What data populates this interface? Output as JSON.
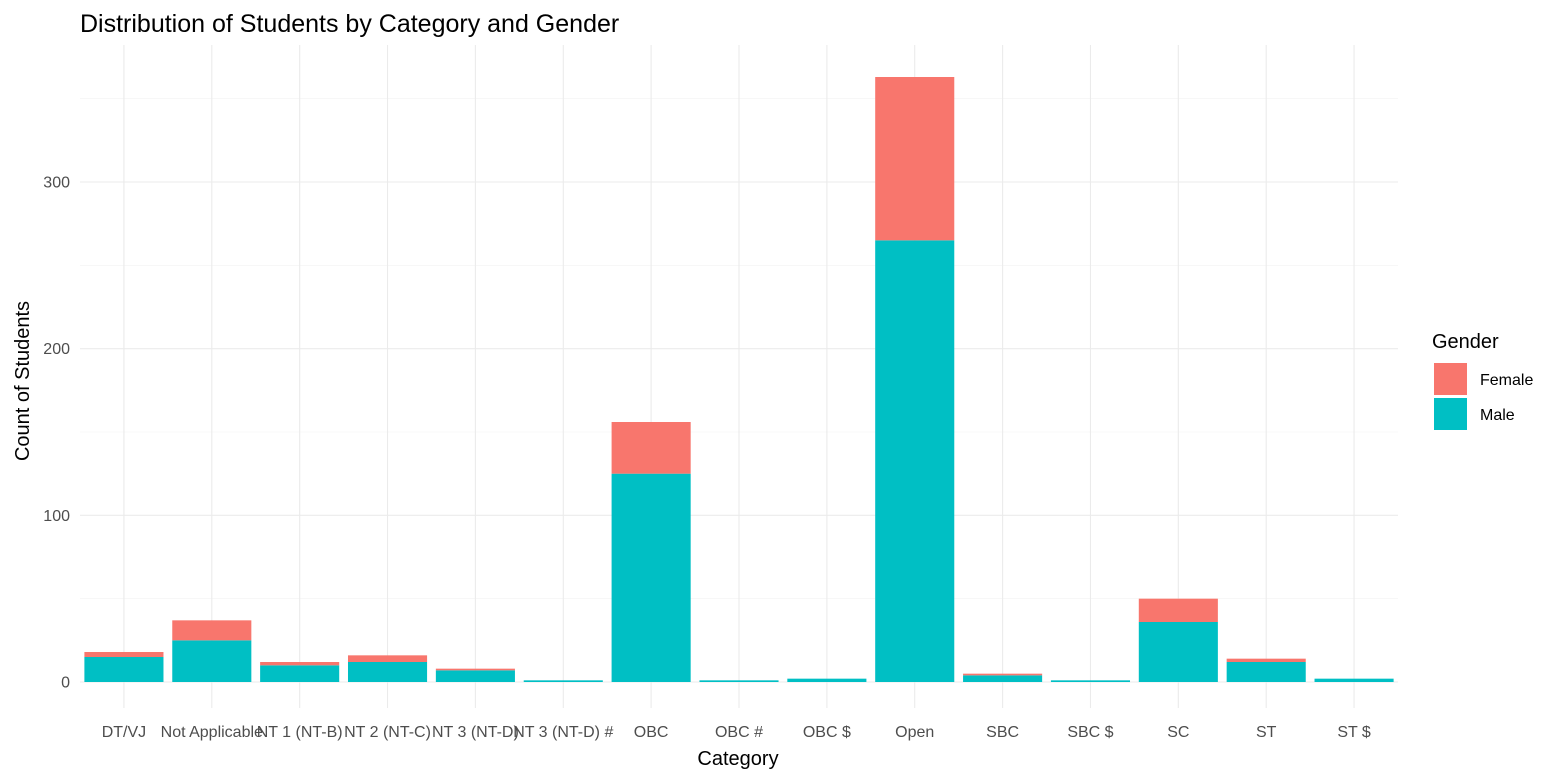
{
  "chart_data": {
    "type": "bar",
    "stacked": true,
    "title": "Distribution of Students by Category and Gender",
    "xlabel": "Category",
    "ylabel": "Count of Students",
    "categories": [
      "DT/VJ",
      "Not Applicable",
      "NT 1 (NT-B)",
      "NT 2 (NT-C)",
      "NT 3 (NT-D)",
      "NT 3 (NT-D) #",
      "OBC",
      "OBC #",
      "OBC $",
      "Open",
      "SBC",
      "SBC $",
      "SC",
      "ST",
      "ST $"
    ],
    "series": [
      {
        "name": "Male",
        "color": "#00BFC4",
        "values": [
          15,
          25,
          10,
          12,
          7,
          1,
          125,
          1,
          2,
          265,
          4,
          1,
          36,
          12,
          2
        ]
      },
      {
        "name": "Female",
        "color": "#F8766D",
        "values": [
          3,
          12,
          2,
          4,
          1,
          0,
          31,
          0,
          0,
          98,
          1,
          0,
          14,
          2,
          0
        ]
      }
    ],
    "ylim": [
      0,
      370
    ],
    "yticks": [
      0,
      100,
      200,
      300
    ],
    "grid": true,
    "legend": {
      "title": "Gender",
      "placement": "right",
      "entries": [
        {
          "label": "Female",
          "color": "#F8766D"
        },
        {
          "label": "Male",
          "color": "#00BFC4"
        }
      ]
    }
  }
}
